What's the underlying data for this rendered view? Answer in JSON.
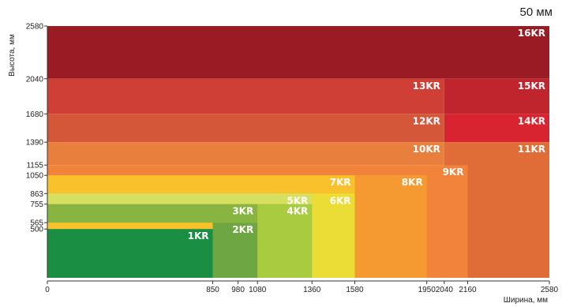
{
  "chart_data": {
    "type": "area",
    "annotation": "50 мм",
    "xlabel": "Ширина, мм",
    "ylabel": "Высота, мм",
    "xlim": [
      0,
      2580
    ],
    "ylim": [
      0,
      2580
    ],
    "x_ticks": [
      0,
      850,
      980,
      1080,
      1360,
      1580,
      1950,
      2040,
      2160,
      2580
    ],
    "y_ticks": [
      500,
      565,
      755,
      863,
      1050,
      1155,
      1390,
      1680,
      2040,
      2580
    ],
    "zones": [
      {
        "label": "16KR",
        "x": [
          0,
          2580
        ],
        "y": [
          2040,
          2580
        ],
        "color": "#9b1b24"
      },
      {
        "label": "15KR",
        "x": [
          2040,
          2580
        ],
        "y": [
          1680,
          2040
        ],
        "color": "#c0252e"
      },
      {
        "label": "13KR",
        "x": [
          0,
          2040
        ],
        "y": [
          1680,
          2040
        ],
        "color": "#d03f35"
      },
      {
        "label": "14KR",
        "x": [
          2040,
          2580
        ],
        "y": [
          1390,
          1680
        ],
        "color": "#d72430"
      },
      {
        "label": "12KR",
        "x": [
          0,
          2040
        ],
        "y": [
          1390,
          1680
        ],
        "color": "#d4573a"
      },
      {
        "label": "11KR",
        "x": [
          2040,
          2580
        ],
        "y": [
          0,
          1390
        ],
        "color": "#e06c38"
      },
      {
        "label": "10KR",
        "x": [
          0,
          2040
        ],
        "y": [
          1155,
          1390
        ],
        "color": "#e97f3d"
      },
      {
        "label": "9KR",
        "x": [
          0,
          2160
        ],
        "y": [
          0,
          1155
        ],
        "color": "#f1843a"
      },
      {
        "label": "8KR",
        "x": [
          0,
          1950
        ],
        "y": [
          0,
          1050
        ],
        "color": "#f49a30"
      },
      {
        "label": "7KR",
        "x": [
          0,
          1580
        ],
        "y": [
          0,
          1050
        ],
        "color": "#f9c22c"
      },
      {
        "label": "6KR",
        "x": [
          1360,
          1580
        ],
        "y": [
          0,
          863
        ],
        "color": "#ebdd35"
      },
      {
        "label": "5KR",
        "x": [
          0,
          1360
        ],
        "y": [
          755,
          863
        ],
        "color": "#d6df5f"
      },
      {
        "label": "4KR",
        "x": [
          1080,
          1360
        ],
        "y": [
          0,
          755
        ],
        "color": "#a9cb40"
      },
      {
        "label": "3KR",
        "x": [
          0,
          1080
        ],
        "y": [
          565,
          755
        ],
        "color": "#88b542"
      },
      {
        "label": "2KR",
        "x": [
          850,
          1080
        ],
        "y": [
          0,
          565
        ],
        "color": "#6ea643"
      },
      {
        "label": "1KR",
        "x": [
          0,
          850
        ],
        "y": [
          0,
          500
        ],
        "color": "#1a8f44"
      }
    ],
    "grid": false
  }
}
